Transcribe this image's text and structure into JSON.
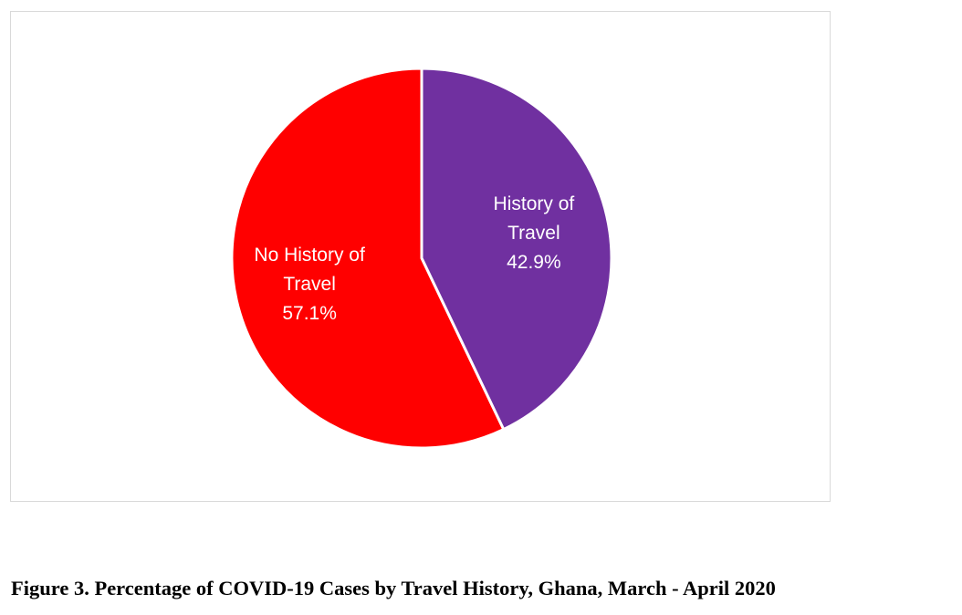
{
  "caption": "Figure 3. Percentage of COVID-19 Cases by Travel History, Ghana, March - April 2020",
  "chart_data": {
    "type": "pie",
    "title": "",
    "start_angle_deg": 0,
    "direction": "clockwise",
    "slices": [
      {
        "label_lines": [
          "History of",
          "Travel"
        ],
        "value": 42.9,
        "value_label": "42.9%",
        "color": "#7030a0"
      },
      {
        "label_lines": [
          "No History of",
          "Travel"
        ],
        "value": 57.1,
        "value_label": "57.1%",
        "color": "#ff0000"
      }
    ]
  }
}
